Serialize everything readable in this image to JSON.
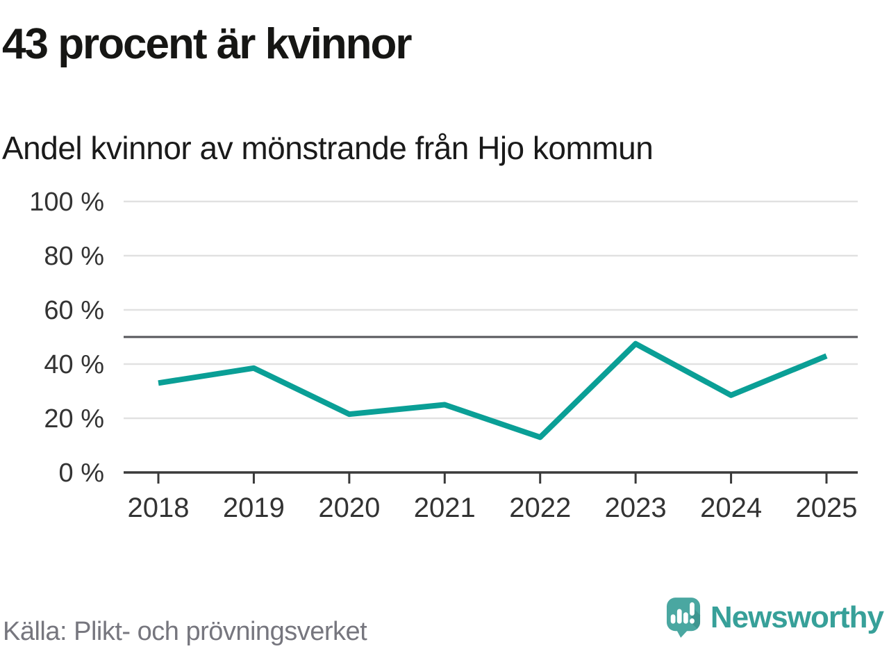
{
  "header": {
    "title": "43 procent är kvinnor",
    "subtitle": "Andel kvinnor av mönstrande från Hjo kommun"
  },
  "footer": {
    "source": "Källa: Plikt- och prövningsverket",
    "brand": "Newsworthy"
  },
  "colors": {
    "line": "#0a9f96",
    "grid": "#e1e1e1",
    "reference_line": "#55565a",
    "axis": "#3a3a3a",
    "logo_bubble": "#4aa7a1",
    "logo_bubble_shadow": "#3c938d",
    "brand_text": "#37a099"
  },
  "chart_data": {
    "type": "line",
    "title": "43 procent är kvinnor",
    "subtitle": "Andel kvinnor av mönstrande från Hjo kommun",
    "categories": [
      "2018",
      "2019",
      "2020",
      "2021",
      "2022",
      "2023",
      "2024",
      "2025"
    ],
    "series": [
      {
        "name": "Andel kvinnor av mönstrande",
        "values": [
          33,
          38.5,
          21.5,
          25,
          13,
          47.5,
          28.5,
          43
        ]
      }
    ],
    "unit": "%",
    "ylim": [
      0,
      100
    ],
    "yticks": [
      0,
      20,
      40,
      60,
      80,
      100
    ],
    "ytick_labels": [
      "0 %",
      "20 %",
      "40 %",
      "60 %",
      "80 %",
      "100 %"
    ],
    "reference_line": 50,
    "grid": true,
    "legend": "none",
    "source": "Källa: Plikt- och prövningsverket"
  }
}
